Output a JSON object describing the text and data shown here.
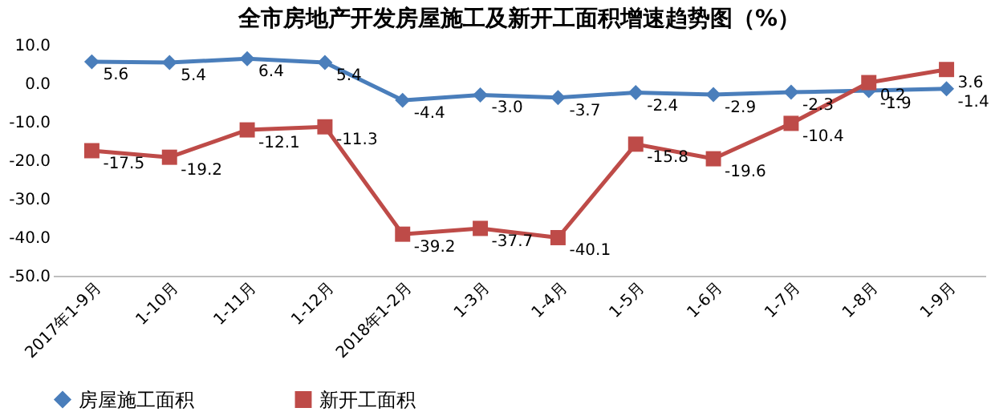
{
  "chart_data": {
    "type": "line",
    "title": "全市房地产开发房屋施工及新开工面积增速趋势图（%）",
    "categories": [
      "2017年1-9月",
      "1-10月",
      "1-11月",
      "1-12月",
      "2018年1-2月",
      "1-3月",
      "1-4月",
      "1-5月",
      "1-6月",
      "1-7月",
      "1-8月",
      "1-9月"
    ],
    "series": [
      {
        "name": "房屋施工面积",
        "color": "#4a7ebb",
        "marker": "diamond",
        "values": [
          5.6,
          5.4,
          6.4,
          5.4,
          -4.4,
          -3.0,
          -3.7,
          -2.4,
          -2.9,
          -2.3,
          -1.9,
          -1.4
        ],
        "value_labels": [
          "5.6",
          "5.4",
          "6.4",
          "5.4",
          "-4.4",
          "-3.0",
          "-3.7",
          "-2.4",
          "-2.9",
          "-2.3",
          "-1.9",
          "-1.4"
        ]
      },
      {
        "name": "新开工面积",
        "color": "#be4b48",
        "marker": "square",
        "values": [
          -17.5,
          -19.2,
          -12.1,
          -11.3,
          -39.2,
          -37.7,
          -40.1,
          -15.8,
          -19.6,
          -10.4,
          0.2,
          3.6
        ],
        "value_labels": [
          "-17.5",
          "-19.2",
          "-12.1",
          "-11.3",
          "-39.2",
          "-37.7",
          "-40.1",
          "-15.8",
          "-19.6",
          "-10.4",
          "0.2",
          "3.6"
        ]
      }
    ],
    "ylim": [
      -50,
      10
    ],
    "yticks": [
      {
        "value": -50,
        "label": "-50.0"
      },
      {
        "value": -40,
        "label": "-40.0"
      },
      {
        "value": -30,
        "label": "-30.0"
      },
      {
        "value": -20,
        "label": "-20.0"
      },
      {
        "value": -10,
        "label": "-10.0"
      },
      {
        "value": 0,
        "label": "0.0"
      },
      {
        "value": 10,
        "label": "10.0"
      }
    ],
    "legend": "bottom",
    "grid": false
  }
}
